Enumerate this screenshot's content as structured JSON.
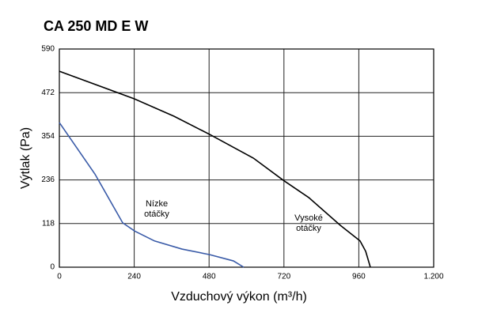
{
  "chart_data": {
    "type": "line",
    "title": "CA 250 MD E W",
    "x_label": "Vzduchový výkon (m³/h)",
    "y_label": "Výtlak (Pa)",
    "series": [
      {
        "color": "#000000",
        "x": [
          0,
          241,
          368,
          482,
          622,
          718,
          800,
          901,
          964,
          982,
          997
        ],
        "values": [
          530,
          455,
          408,
          359,
          295,
          235,
          188,
          113,
          71,
          43,
          0
        ]
      },
      {
        "color": "#3a5ba8",
        "x": [
          0,
          114,
          203,
          241,
          305,
          393,
          482,
          558,
          591
        ],
        "values": [
          391,
          252,
          120,
          98,
          71,
          49,
          34,
          17,
          0
        ]
      }
    ],
    "annotations": [
      [
        "Nízke",
        "otáčky"
      ],
      [
        "Vysoké",
        "otáčky"
      ]
    ],
    "xlim": [
      0,
      1200
    ],
    "xticks": [
      0,
      240,
      480,
      720,
      960,
      {
        "value": 1200,
        "label": "1.200"
      }
    ],
    "ylim": [
      0,
      590
    ],
    "yticks": [
      0,
      118,
      236,
      354,
      472,
      590
    ],
    "grid": true
  }
}
